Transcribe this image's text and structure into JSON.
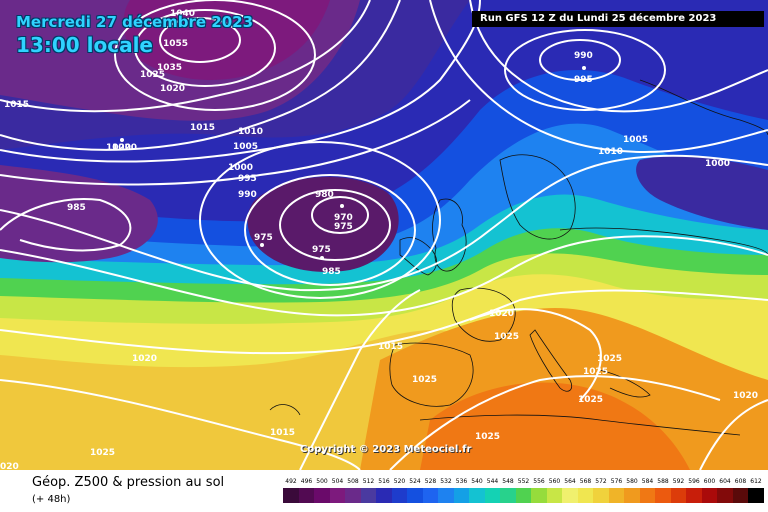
{
  "header": {
    "date": "Mercredi 27 décembre 2023",
    "time": "13:00 locale",
    "run": "Run GFS 12 Z du Lundi 25 décembre 2023"
  },
  "footer": {
    "copyright": "Copyright © 2023 Meteociel.fr",
    "product_title": "Géop. Z500 & pression au sol",
    "lead_time": "(+ 48h)"
  },
  "legend": {
    "ticks": [
      "492",
      "496",
      "500",
      "504",
      "508",
      "512",
      "516",
      "520",
      "524",
      "528",
      "532",
      "536",
      "540",
      "544",
      "548",
      "552",
      "556",
      "560",
      "564",
      "568",
      "572",
      "576",
      "580",
      "584",
      "588",
      "592",
      "596",
      "600",
      "604",
      "608",
      "612"
    ],
    "colors": [
      "#3a0a3a",
      "#520a52",
      "#6a0a6a",
      "#7d1a7d",
      "#6a2a8a",
      "#4a3aa0",
      "#2a2ab4",
      "#1e3ccc",
      "#1450e0",
      "#1e64f0",
      "#1e82f0",
      "#14a0e6",
      "#14c2d2",
      "#14d2b4",
      "#28d28c",
      "#50d250",
      "#96dc3c",
      "#c8e646",
      "#f0f06e",
      "#f0e650",
      "#f0d23c",
      "#f0b428",
      "#f09a1e",
      "#f07814",
      "#ec5a0f",
      "#dc3c0a",
      "#c81e0a",
      "#aa0a0a",
      "#820a0a",
      "#5a0a0a",
      "#000000"
    ]
  },
  "map": {
    "pressure_labels": [
      {
        "text": "1015"
      },
      {
        "text": "1020"
      },
      {
        "text": "1055"
      },
      {
        "text": "1040"
      },
      {
        "text": "1035"
      },
      {
        "text": "1025"
      },
      {
        "text": "1020"
      },
      {
        "text": "1015"
      },
      {
        "text": "1010"
      },
      {
        "text": "1005"
      },
      {
        "text": "1020"
      },
      {
        "text": "1000"
      },
      {
        "text": "995"
      },
      {
        "text": "990"
      },
      {
        "text": "985"
      },
      {
        "text": "980"
      },
      {
        "text": "970"
      },
      {
        "text": "975"
      },
      {
        "text": "975"
      },
      {
        "text": "975"
      },
      {
        "text": "985"
      },
      {
        "text": "990"
      },
      {
        "text": "995"
      },
      {
        "text": "1005"
      },
      {
        "text": "1010"
      },
      {
        "text": "1000"
      },
      {
        "text": "1020"
      },
      {
        "text": "1015"
      },
      {
        "text": "1025"
      },
      {
        "text": "1025"
      },
      {
        "text": "1025"
      },
      {
        "text": "1025"
      },
      {
        "text": "1025"
      },
      {
        "text": "1020"
      },
      {
        "text": "1025"
      },
      {
        "text": "1015"
      },
      {
        "text": "1025"
      },
      {
        "text": "1020"
      },
      {
        "text": "020"
      }
    ]
  }
}
